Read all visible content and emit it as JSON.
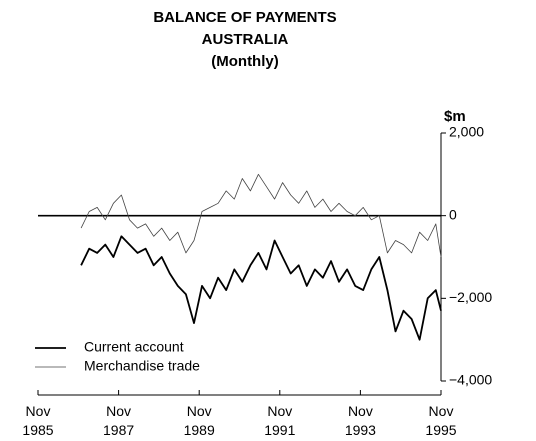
{
  "chart_data": {
    "type": "line",
    "title": [
      "BALANCE OF PAYMENTS",
      "AUSTRALIA",
      "(Monthly)"
    ],
    "y_label": "$m",
    "xlim": [
      1985.83,
      1995.83
    ],
    "xticks": [
      {
        "value": 1985.83,
        "label": "Nov 1985"
      },
      {
        "value": 1987.83,
        "label": "Nov 1987"
      },
      {
        "value": 1989.83,
        "label": "Nov 1989"
      },
      {
        "value": 1991.83,
        "label": "Nov 1991"
      },
      {
        "value": 1993.83,
        "label": "Nov 1993"
      },
      {
        "value": 1995.83,
        "label": "Nov 1995"
      }
    ],
    "ylim": [
      -4000,
      2000
    ],
    "yticks": [
      {
        "value": 2000,
        "label": "2,000"
      },
      0,
      {
        "value": -2000,
        "label": "−2,000"
      },
      {
        "value": -4000,
        "label": "−4,000"
      }
    ],
    "legend": "lower left",
    "x": [
      1986.9,
      1987.1,
      1987.3,
      1987.5,
      1987.7,
      1987.9,
      1988.1,
      1988.3,
      1988.5,
      1988.7,
      1988.9,
      1989.1,
      1989.3,
      1989.5,
      1989.7,
      1989.9,
      1990.1,
      1990.3,
      1990.5,
      1990.7,
      1990.9,
      1991.1,
      1991.3,
      1991.5,
      1991.7,
      1991.9,
      1992.1,
      1992.3,
      1992.5,
      1992.7,
      1992.9,
      1993.1,
      1993.3,
      1993.5,
      1993.7,
      1993.9,
      1994.1,
      1994.3,
      1994.5,
      1994.7,
      1994.9,
      1995.1,
      1995.3,
      1995.5,
      1995.7,
      1995.83
    ],
    "series": [
      {
        "name": "Current account",
        "color": "#000000",
        "values": [
          -1200,
          -800,
          -900,
          -700,
          -1000,
          -500,
          -700,
          -900,
          -800,
          -1200,
          -1000,
          -1400,
          -1700,
          -1900,
          -2600,
          -1700,
          -2000,
          -1500,
          -1800,
          -1300,
          -1600,
          -1200,
          -900,
          -1300,
          -600,
          -1000,
          -1400,
          -1200,
          -1700,
          -1300,
          -1500,
          -1100,
          -1600,
          -1300,
          -1700,
          -1800,
          -1300,
          -1000,
          -1800,
          -2800,
          -2300,
          -2500,
          -3000,
          -2000,
          -1800,
          -2300
        ]
      },
      {
        "name": "Merchandise trade",
        "color": "#444444",
        "values": [
          -300,
          100,
          200,
          -100,
          300,
          500,
          -100,
          -300,
          -200,
          -500,
          -300,
          -600,
          -400,
          -900,
          -600,
          100,
          200,
          300,
          600,
          400,
          900,
          600,
          1000,
          700,
          400,
          800,
          500,
          300,
          600,
          200,
          400,
          100,
          300,
          100,
          0,
          200,
          -100,
          0,
          -900,
          -600,
          -700,
          -900,
          -400,
          -600,
          -200,
          -1000
        ]
      }
    ]
  }
}
